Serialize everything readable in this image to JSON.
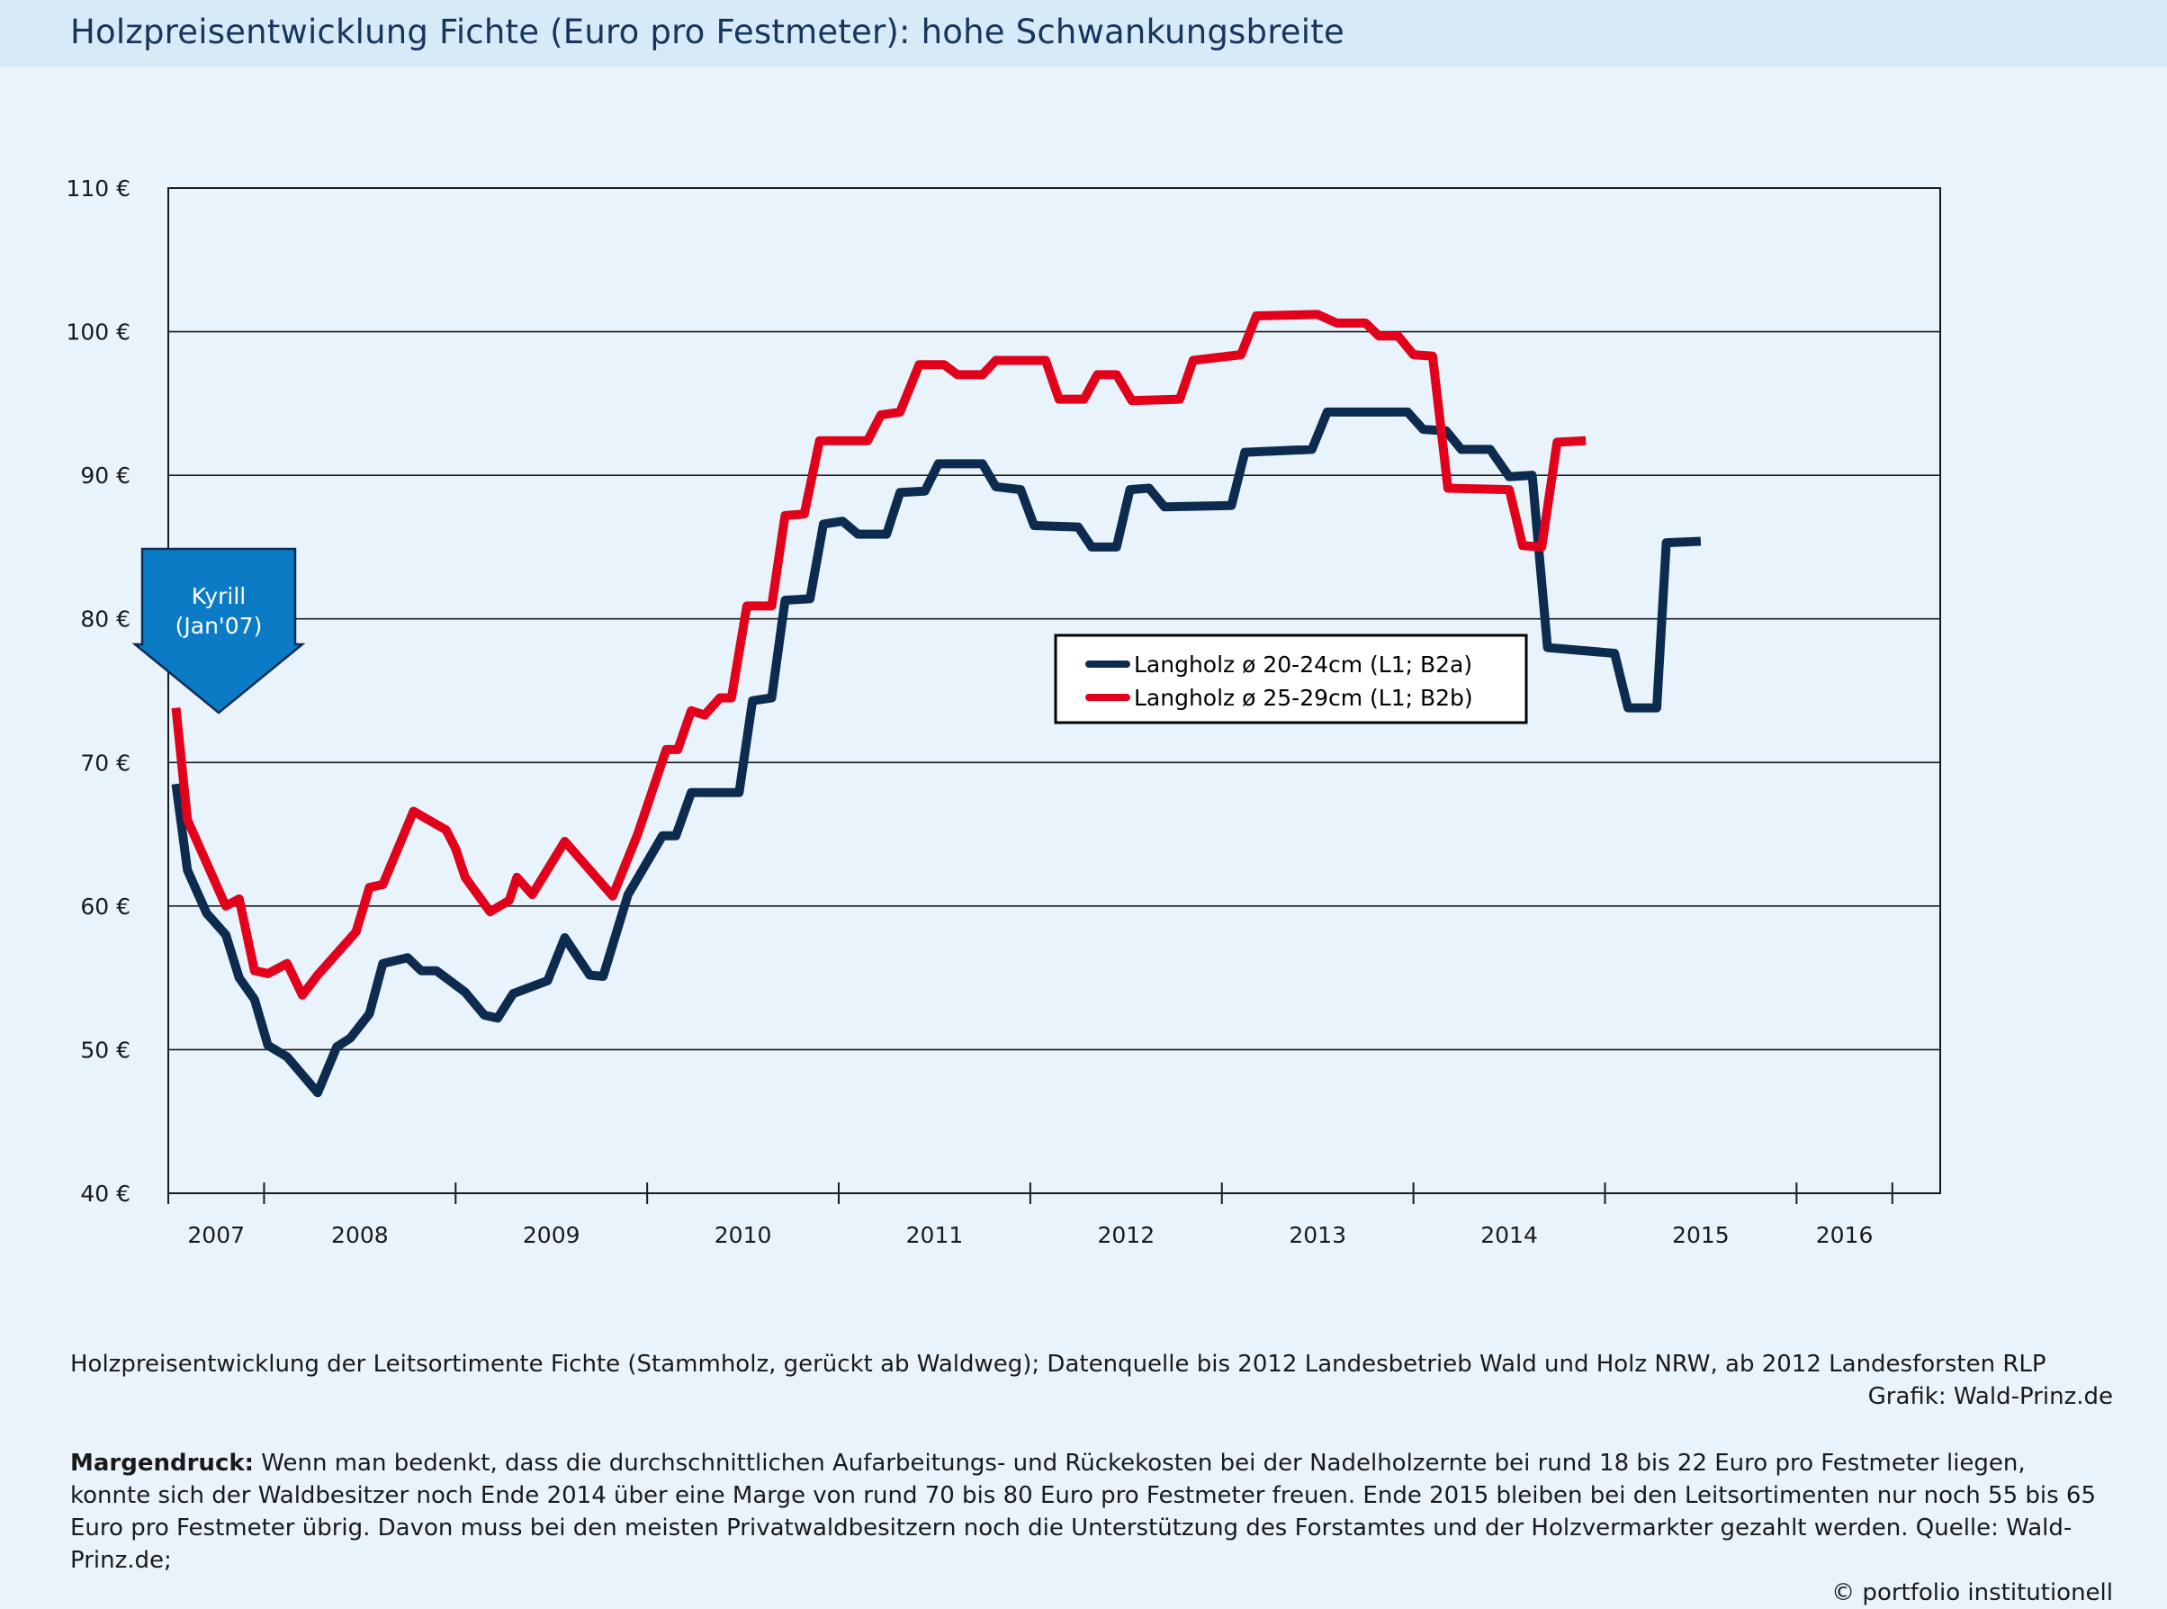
{
  "title": "Holzpreisentwicklung Fichte (Euro pro Festmeter): hohe Schwankungsbreite",
  "annotation": {
    "line1": "Kyrill",
    "line2": "(Jan'07)"
  },
  "caption": {
    "text": "Holzpreisentwicklung der Leitsortimente Fichte (Stammholz, gerückt ab Waldweg); Datenquelle bis 2012 Landesbetrieb Wald und Holz NRW, ab 2012 Landesforsten RLP",
    "credit": "Grafik: Wald-Prinz.de"
  },
  "note": {
    "lead": "Margendruck:",
    "text": " Wenn man bedenkt, dass die durchschnittlichen Aufarbeitungs- und Rückekosten bei der Nadelholzernte bei rund 18 bis 22 Euro pro Festmeter liegen, konnte sich der Waldbesitzer noch Ende 2014 über eine Marge von rund 70 bis 80 Euro pro Festmeter freuen. Ende 2015 bleiben bei den Leitsortimenten nur noch 55 bis 65 Euro pro Festmeter übrig. Davon muss bei den meisten Privatwaldbesitzern noch die Unterstützung des Forstamtes und der Holzvermarkter gezahlt werden.",
    "source": "Quelle: Wald-Prinz.de;",
    "copyright": "© portfolio institutionell"
  },
  "colors": {
    "series1": "#0d2b4e",
    "series2": "#e2001a",
    "annotation": "#0a7bc4",
    "grid": "#1a1a1a"
  },
  "chart_data": {
    "type": "line",
    "title": "Holzpreisentwicklung Fichte (Euro pro Festmeter): hohe Schwankungsbreite",
    "xlabel": "",
    "ylabel": "",
    "ylim": [
      40,
      110
    ],
    "xlim": [
      2007.0,
      2016.25
    ],
    "yticks": [
      40,
      50,
      60,
      70,
      80,
      90,
      100,
      110
    ],
    "ytick_labels": [
      "40 €",
      "50 €",
      "60 €",
      "70 €",
      "80 €",
      "90 €",
      "100 €",
      "110 €"
    ],
    "year_labels": [
      "2007",
      "2008",
      "2009",
      "2010",
      "2011",
      "2012",
      "2013",
      "2014",
      "2015",
      "2016"
    ],
    "grid": "horizontal",
    "legend_position": "center-right",
    "series": [
      {
        "name": "Langholz ø 20-24cm (L1; B2a)",
        "color": "#0d2b4e",
        "points": [
          [
            2007.04,
            68.5
          ],
          [
            2007.1,
            62.5
          ],
          [
            2007.2,
            59.5
          ],
          [
            2007.3,
            58.0
          ],
          [
            2007.37,
            55.0
          ],
          [
            2007.45,
            53.5
          ],
          [
            2007.52,
            50.3
          ],
          [
            2007.62,
            49.5
          ],
          [
            2007.78,
            47.0
          ],
          [
            2007.88,
            50.2
          ],
          [
            2007.95,
            50.8
          ],
          [
            2008.05,
            52.5
          ],
          [
            2008.12,
            56.0
          ],
          [
            2008.25,
            56.4
          ],
          [
            2008.32,
            55.5
          ],
          [
            2008.4,
            55.5
          ],
          [
            2008.55,
            54.0
          ],
          [
            2008.65,
            52.4
          ],
          [
            2008.72,
            52.2
          ],
          [
            2008.8,
            53.9
          ],
          [
            2008.92,
            54.5
          ],
          [
            2008.98,
            54.8
          ],
          [
            2009.07,
            57.8
          ],
          [
            2009.2,
            55.2
          ],
          [
            2009.27,
            55.1
          ],
          [
            2009.4,
            60.8
          ],
          [
            2009.58,
            64.9
          ],
          [
            2009.65,
            64.9
          ],
          [
            2009.73,
            67.9
          ],
          [
            2009.98,
            67.9
          ],
          [
            2010.05,
            74.3
          ],
          [
            2010.15,
            74.5
          ],
          [
            2010.22,
            81.3
          ],
          [
            2010.35,
            81.4
          ],
          [
            2010.42,
            86.6
          ],
          [
            2010.52,
            86.8
          ],
          [
            2010.6,
            85.9
          ],
          [
            2010.75,
            85.9
          ],
          [
            2010.82,
            88.8
          ],
          [
            2010.95,
            88.9
          ],
          [
            2011.02,
            90.8
          ],
          [
            2011.25,
            90.8
          ],
          [
            2011.32,
            89.2
          ],
          [
            2011.45,
            89.0
          ],
          [
            2011.52,
            86.5
          ],
          [
            2011.75,
            86.4
          ],
          [
            2011.82,
            85.0
          ],
          [
            2011.95,
            85.0
          ],
          [
            2012.02,
            89.0
          ],
          [
            2012.12,
            89.1
          ],
          [
            2012.2,
            87.8
          ],
          [
            2012.55,
            87.9
          ],
          [
            2012.62,
            91.6
          ],
          [
            2012.97,
            91.8
          ],
          [
            2013.05,
            94.4
          ],
          [
            2013.47,
            94.4
          ],
          [
            2013.55,
            93.2
          ],
          [
            2013.67,
            93.1
          ],
          [
            2013.75,
            91.8
          ],
          [
            2013.9,
            91.8
          ],
          [
            2014.0,
            89.9
          ],
          [
            2014.12,
            90.0
          ],
          [
            2014.2,
            78.0
          ],
          [
            2014.55,
            77.6
          ],
          [
            2014.62,
            73.8
          ],
          [
            2014.77,
            73.8
          ],
          [
            2014.82,
            85.3
          ],
          [
            2015.0,
            85.4
          ]
        ]
      },
      {
        "name": "Langholz ø 25-29cm (L1; B2b)",
        "color": "#e2001a",
        "points": [
          [
            2007.04,
            73.8
          ],
          [
            2007.1,
            66.0
          ],
          [
            2007.2,
            63.0
          ],
          [
            2007.3,
            60.0
          ],
          [
            2007.37,
            60.5
          ],
          [
            2007.45,
            55.5
          ],
          [
            2007.52,
            55.3
          ],
          [
            2007.62,
            56.0
          ],
          [
            2007.7,
            53.8
          ],
          [
            2007.78,
            55.2
          ],
          [
            2007.9,
            57.0
          ],
          [
            2007.98,
            58.2
          ],
          [
            2008.05,
            61.3
          ],
          [
            2008.12,
            61.5
          ],
          [
            2008.28,
            66.6
          ],
          [
            2008.45,
            65.3
          ],
          [
            2008.5,
            64.0
          ],
          [
            2008.55,
            62.0
          ],
          [
            2008.68,
            59.6
          ],
          [
            2008.78,
            60.4
          ],
          [
            2008.82,
            62.0
          ],
          [
            2008.9,
            60.8
          ],
          [
            2009.07,
            64.5
          ],
          [
            2009.32,
            60.7
          ],
          [
            2009.45,
            65.0
          ],
          [
            2009.6,
            70.9
          ],
          [
            2009.66,
            70.9
          ],
          [
            2009.73,
            73.6
          ],
          [
            2009.8,
            73.3
          ],
          [
            2009.88,
            74.5
          ],
          [
            2009.94,
            74.5
          ],
          [
            2010.02,
            80.9
          ],
          [
            2010.15,
            80.9
          ],
          [
            2010.22,
            87.2
          ],
          [
            2010.32,
            87.3
          ],
          [
            2010.4,
            92.4
          ],
          [
            2010.65,
            92.4
          ],
          [
            2010.72,
            94.2
          ],
          [
            2010.82,
            94.4
          ],
          [
            2010.92,
            97.7
          ],
          [
            2011.05,
            97.7
          ],
          [
            2011.12,
            97.0
          ],
          [
            2011.25,
            97.0
          ],
          [
            2011.32,
            98.0
          ],
          [
            2011.58,
            98.0
          ],
          [
            2011.65,
            95.3
          ],
          [
            2011.78,
            95.3
          ],
          [
            2011.85,
            97.0
          ],
          [
            2011.95,
            97.0
          ],
          [
            2012.03,
            95.2
          ],
          [
            2012.28,
            95.3
          ],
          [
            2012.35,
            98.0
          ],
          [
            2012.6,
            98.4
          ],
          [
            2012.68,
            101.1
          ],
          [
            2013.0,
            101.2
          ],
          [
            2013.1,
            100.6
          ],
          [
            2013.25,
            100.6
          ],
          [
            2013.32,
            99.7
          ],
          [
            2013.42,
            99.7
          ],
          [
            2013.5,
            98.4
          ],
          [
            2013.6,
            98.3
          ],
          [
            2013.68,
            89.1
          ],
          [
            2014.0,
            89.0
          ],
          [
            2014.07,
            85.1
          ],
          [
            2014.17,
            85.0
          ],
          [
            2014.25,
            92.3
          ],
          [
            2014.4,
            92.4
          ]
        ]
      }
    ],
    "annotations": [
      {
        "text": "Kyrill (Jan'07)",
        "x": 2007.04
      }
    ]
  }
}
